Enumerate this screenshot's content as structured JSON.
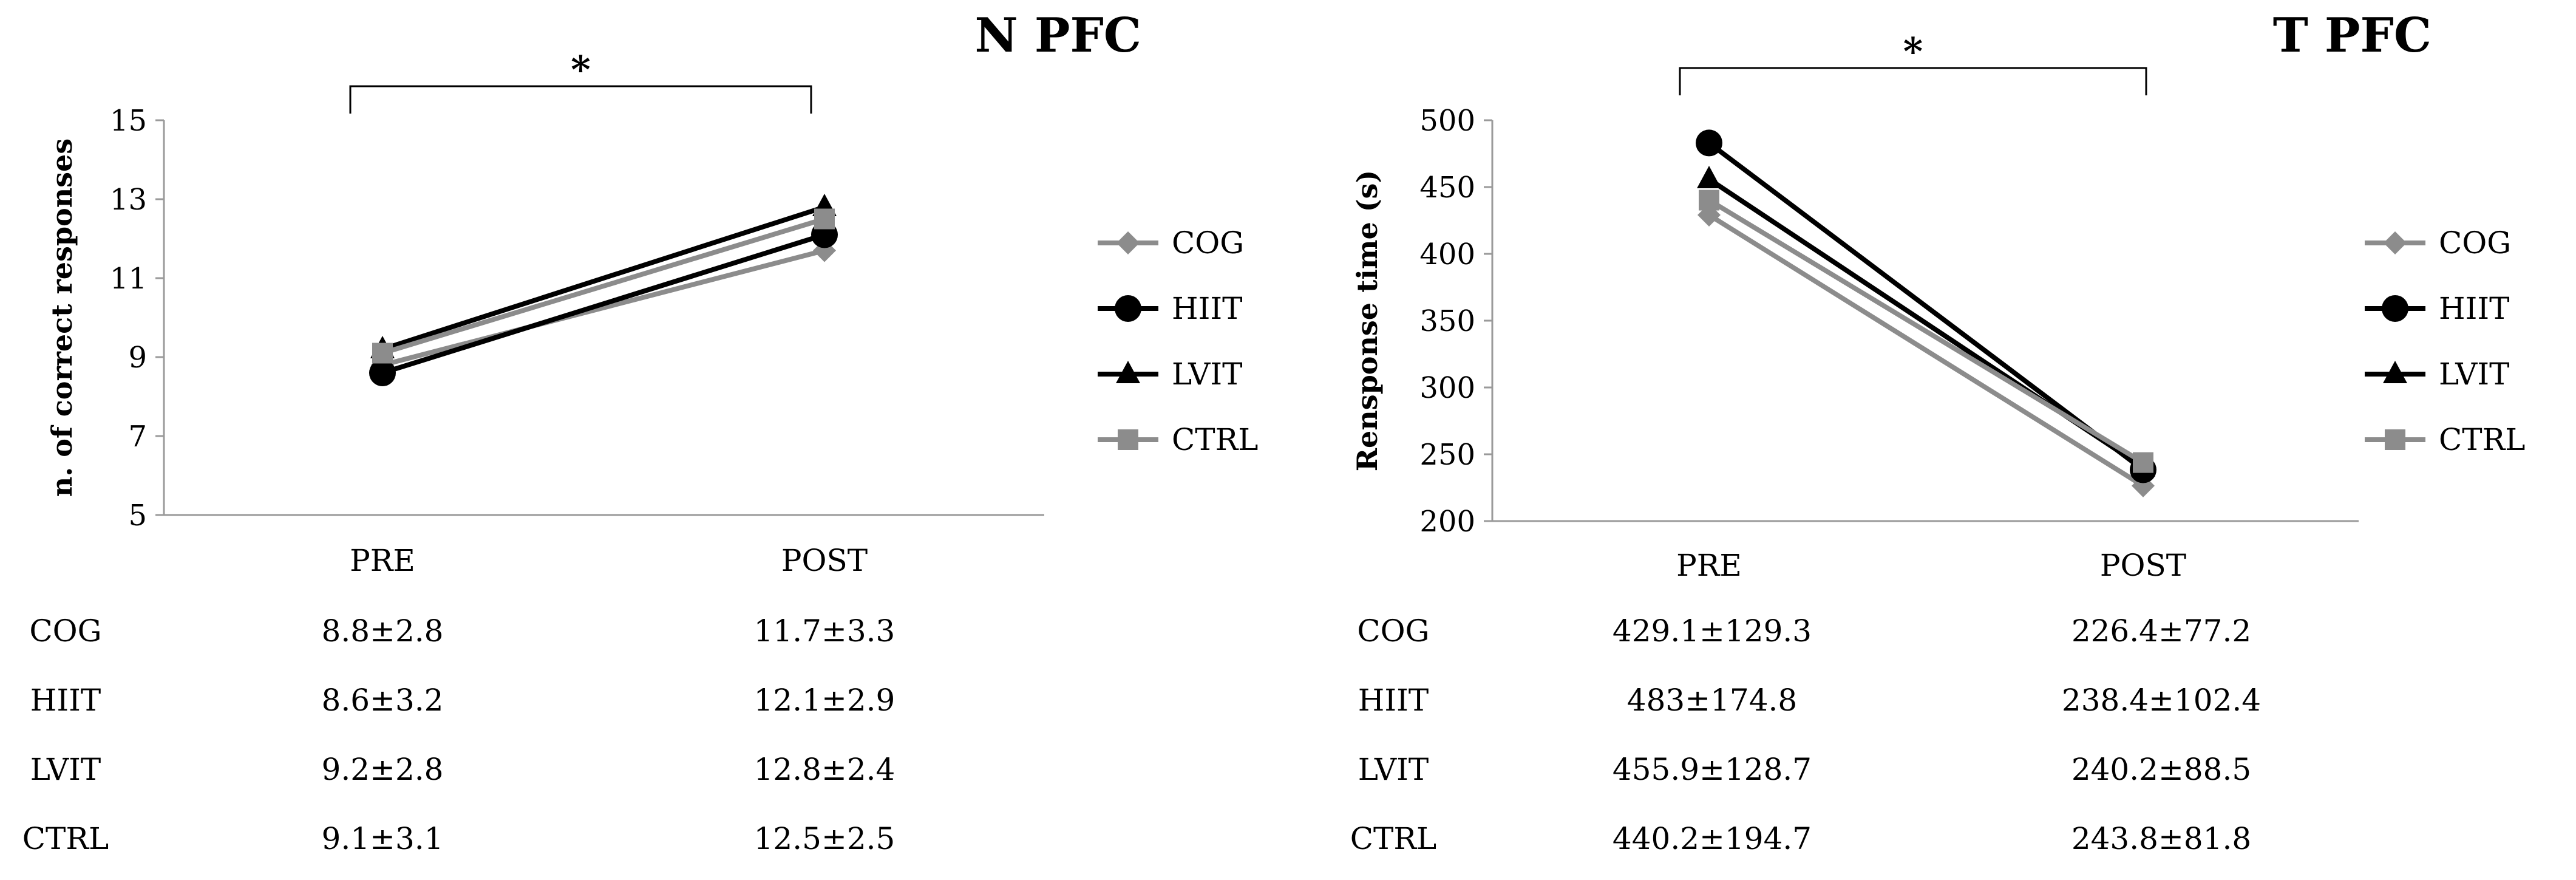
{
  "chart_data": [
    {
      "type": "line",
      "title": "N PFC",
      "ylabel": "n. of correct responses",
      "xlabel": "",
      "categories": [
        "PRE",
        "POST"
      ],
      "ylim": [
        5,
        15
      ],
      "yticks": [
        5,
        7,
        9,
        11,
        13,
        15
      ],
      "gridlines": false,
      "legend_position": "right",
      "significance": "*",
      "series": [
        {
          "name": "COG",
          "values": [
            8.8,
            11.7
          ],
          "marker": "diamond",
          "color": "#8c8c8c"
        },
        {
          "name": "HIIT",
          "values": [
            8.6,
            12.1
          ],
          "marker": "circle",
          "color": "#000000"
        },
        {
          "name": "LVIT",
          "values": [
            9.2,
            12.8
          ],
          "marker": "triangle",
          "color": "#000000"
        },
        {
          "name": "CTRL",
          "values": [
            9.1,
            12.5
          ],
          "marker": "square",
          "color": "#8c8c8c"
        }
      ],
      "table": {
        "rows": [
          {
            "label": "COG",
            "cells": [
              "8.8±2.8",
              "11.7±3.3"
            ]
          },
          {
            "label": "HIIT",
            "cells": [
              "8.6±3.2",
              "12.1±2.9"
            ]
          },
          {
            "label": "LVIT",
            "cells": [
              "9.2±2.8",
              "12.8±2.4"
            ]
          },
          {
            "label": "CTRL",
            "cells": [
              "9.1±3.1",
              "12.5±2.5"
            ]
          }
        ]
      }
    },
    {
      "type": "line",
      "title": "T PFC",
      "ylabel": "Rensponse time (s)",
      "xlabel": "",
      "categories": [
        "PRE",
        "POST"
      ],
      "ylim": [
        200,
        500
      ],
      "yticks": [
        200,
        250,
        300,
        350,
        400,
        450,
        500
      ],
      "gridlines": false,
      "legend_position": "right",
      "significance": "*",
      "series": [
        {
          "name": "COG",
          "values": [
            429.1,
            226.4
          ],
          "marker": "diamond",
          "color": "#8c8c8c"
        },
        {
          "name": "HIIT",
          "values": [
            483,
            238.4
          ],
          "marker": "circle",
          "color": "#000000"
        },
        {
          "name": "LVIT",
          "values": [
            455.9,
            240.2
          ],
          "marker": "triangle",
          "color": "#000000"
        },
        {
          "name": "CTRL",
          "values": [
            440.2,
            243.8
          ],
          "marker": "square",
          "color": "#8c8c8c"
        }
      ],
      "table": {
        "rows": [
          {
            "label": "COG",
            "cells": [
              "429.1±129.3",
              "226.4±77.2"
            ]
          },
          {
            "label": "HIIT",
            "cells": [
              "483±174.8",
              "238.4±102.4"
            ]
          },
          {
            "label": "LVIT",
            "cells": [
              "455.9±128.7",
              "240.2±88.5"
            ]
          },
          {
            "label": "CTRL",
            "cells": [
              "440.2±194.7",
              "243.8±81.8"
            ]
          }
        ]
      }
    }
  ]
}
